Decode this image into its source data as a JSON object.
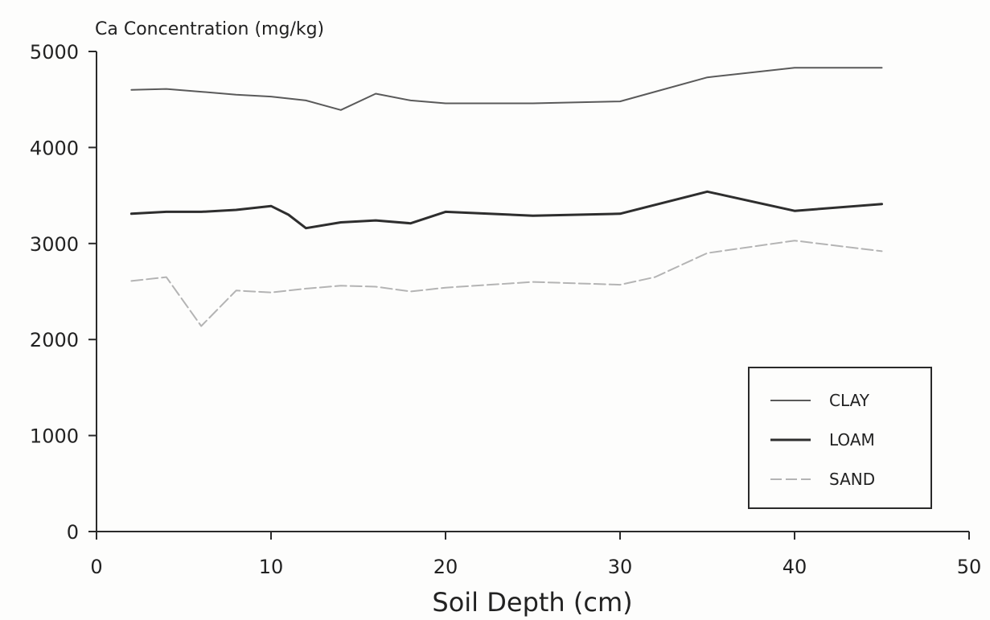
{
  "chart_data": {
    "type": "line",
    "ylabel": "Ca Concentration (mg/kg)",
    "xlabel": "Soil Depth (cm)",
    "xlim": [
      0,
      50
    ],
    "ylim": [
      0,
      5000
    ],
    "x_ticks": [
      0,
      10,
      20,
      30,
      40,
      50
    ],
    "y_ticks": [
      0,
      1000,
      2000,
      3000,
      4000,
      5000
    ],
    "grid": false,
    "legend_position": "bottom-right",
    "series": [
      {
        "name": "CLAY",
        "color": "#5a5a5a",
        "width": 2,
        "dash": "",
        "x": [
          2,
          4,
          6,
          8,
          10,
          12,
          14,
          16,
          18,
          20,
          25,
          30,
          32,
          35,
          40,
          45
        ],
        "y": [
          4600,
          4610,
          4580,
          4550,
          4530,
          4490,
          4390,
          4560,
          4490,
          4460,
          4460,
          4480,
          4580,
          4730,
          4830,
          4830
        ]
      },
      {
        "name": "LOAM",
        "color": "#2e2e2e",
        "width": 3,
        "dash": "",
        "x": [
          2,
          4,
          6,
          8,
          10,
          11,
          12,
          14,
          16,
          18,
          20,
          25,
          30,
          35,
          40,
          45
        ],
        "y": [
          3310,
          3330,
          3330,
          3350,
          3390,
          3300,
          3160,
          3220,
          3240,
          3210,
          3330,
          3290,
          3310,
          3540,
          3340,
          3410
        ]
      },
      {
        "name": "SAND",
        "color": "#b4b4b4",
        "width": 2,
        "dash": "14 5",
        "x": [
          2,
          4,
          6,
          8,
          10,
          12,
          14,
          16,
          18,
          20,
          25,
          30,
          32,
          35,
          40,
          45
        ],
        "y": [
          2610,
          2650,
          2140,
          2510,
          2490,
          2530,
          2560,
          2550,
          2500,
          2540,
          2600,
          2570,
          2650,
          2900,
          3030,
          2920
        ]
      }
    ]
  }
}
